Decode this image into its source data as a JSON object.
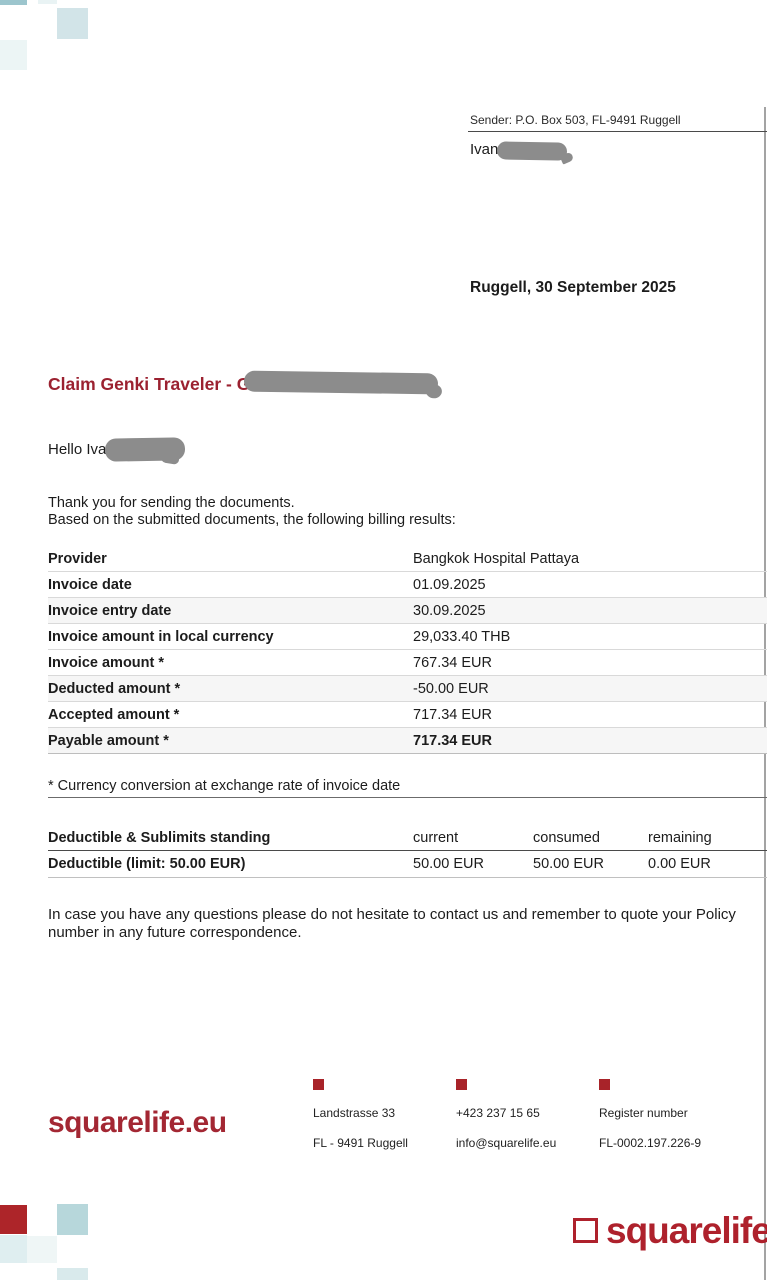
{
  "letter": {
    "sender_line": "Sender: P.O. Box 503, FL-9491 Ruggell",
    "recipient_visible": "Ivan",
    "date_line": "Ruggell, 30 September 2025",
    "claim_title_visible": "Claim Genki Traveler - GT0",
    "greeting_visible": "Hello Iva",
    "intro_line1": "Thank you for sending the documents.",
    "intro_line2": "Based on the submitted documents, the following billing results:",
    "footnote": "* Currency conversion at exchange rate of invoice date",
    "closing": "In case you have any questions please do not hesitate to contact us and remember to quote your Policy number in any future correspondence."
  },
  "billing_table": {
    "rows": [
      {
        "label": "Provider",
        "value": "Bangkok Hospital Pattaya"
      },
      {
        "label": "Invoice date",
        "value": "01.09.2025"
      },
      {
        "label": "Invoice entry date",
        "value": "30.09.2025"
      },
      {
        "label": "Invoice amount in local currency",
        "value": "29,033.40 THB"
      },
      {
        "label": "Invoice amount *",
        "value": "767.34 EUR"
      },
      {
        "label": "Deducted amount *",
        "value": "-50.00 EUR"
      },
      {
        "label": "Accepted amount *",
        "value": "717.34 EUR"
      },
      {
        "label": "Payable amount *",
        "value": "717.34 EUR"
      }
    ]
  },
  "deductible_table": {
    "title": "Deductible & Sublimits standing",
    "col_current": "current",
    "col_consumed": "consumed",
    "col_remaining": "remaining",
    "row": {
      "label": "Deductible (limit: 50.00 EUR)",
      "current": "50.00 EUR",
      "consumed": "50.00 EUR",
      "remaining": "0.00 EUR"
    }
  },
  "footer": {
    "logo_text": "squarelife.eu",
    "address_line1": "Landstrasse 33",
    "address_line2": "FL - 9491 Ruggell",
    "phone": "+423 237 15 65",
    "email": "info@squarelife.eu",
    "register_label": "Register number",
    "register_number": "FL-0002.197.226-9",
    "brand_logo_text": "squarelife"
  },
  "colors": {
    "brand_red": "#ae212c",
    "title_red": "#9b2130",
    "accent_teal": "#b7d7db",
    "redaction_gray": "#8c8c8c"
  }
}
